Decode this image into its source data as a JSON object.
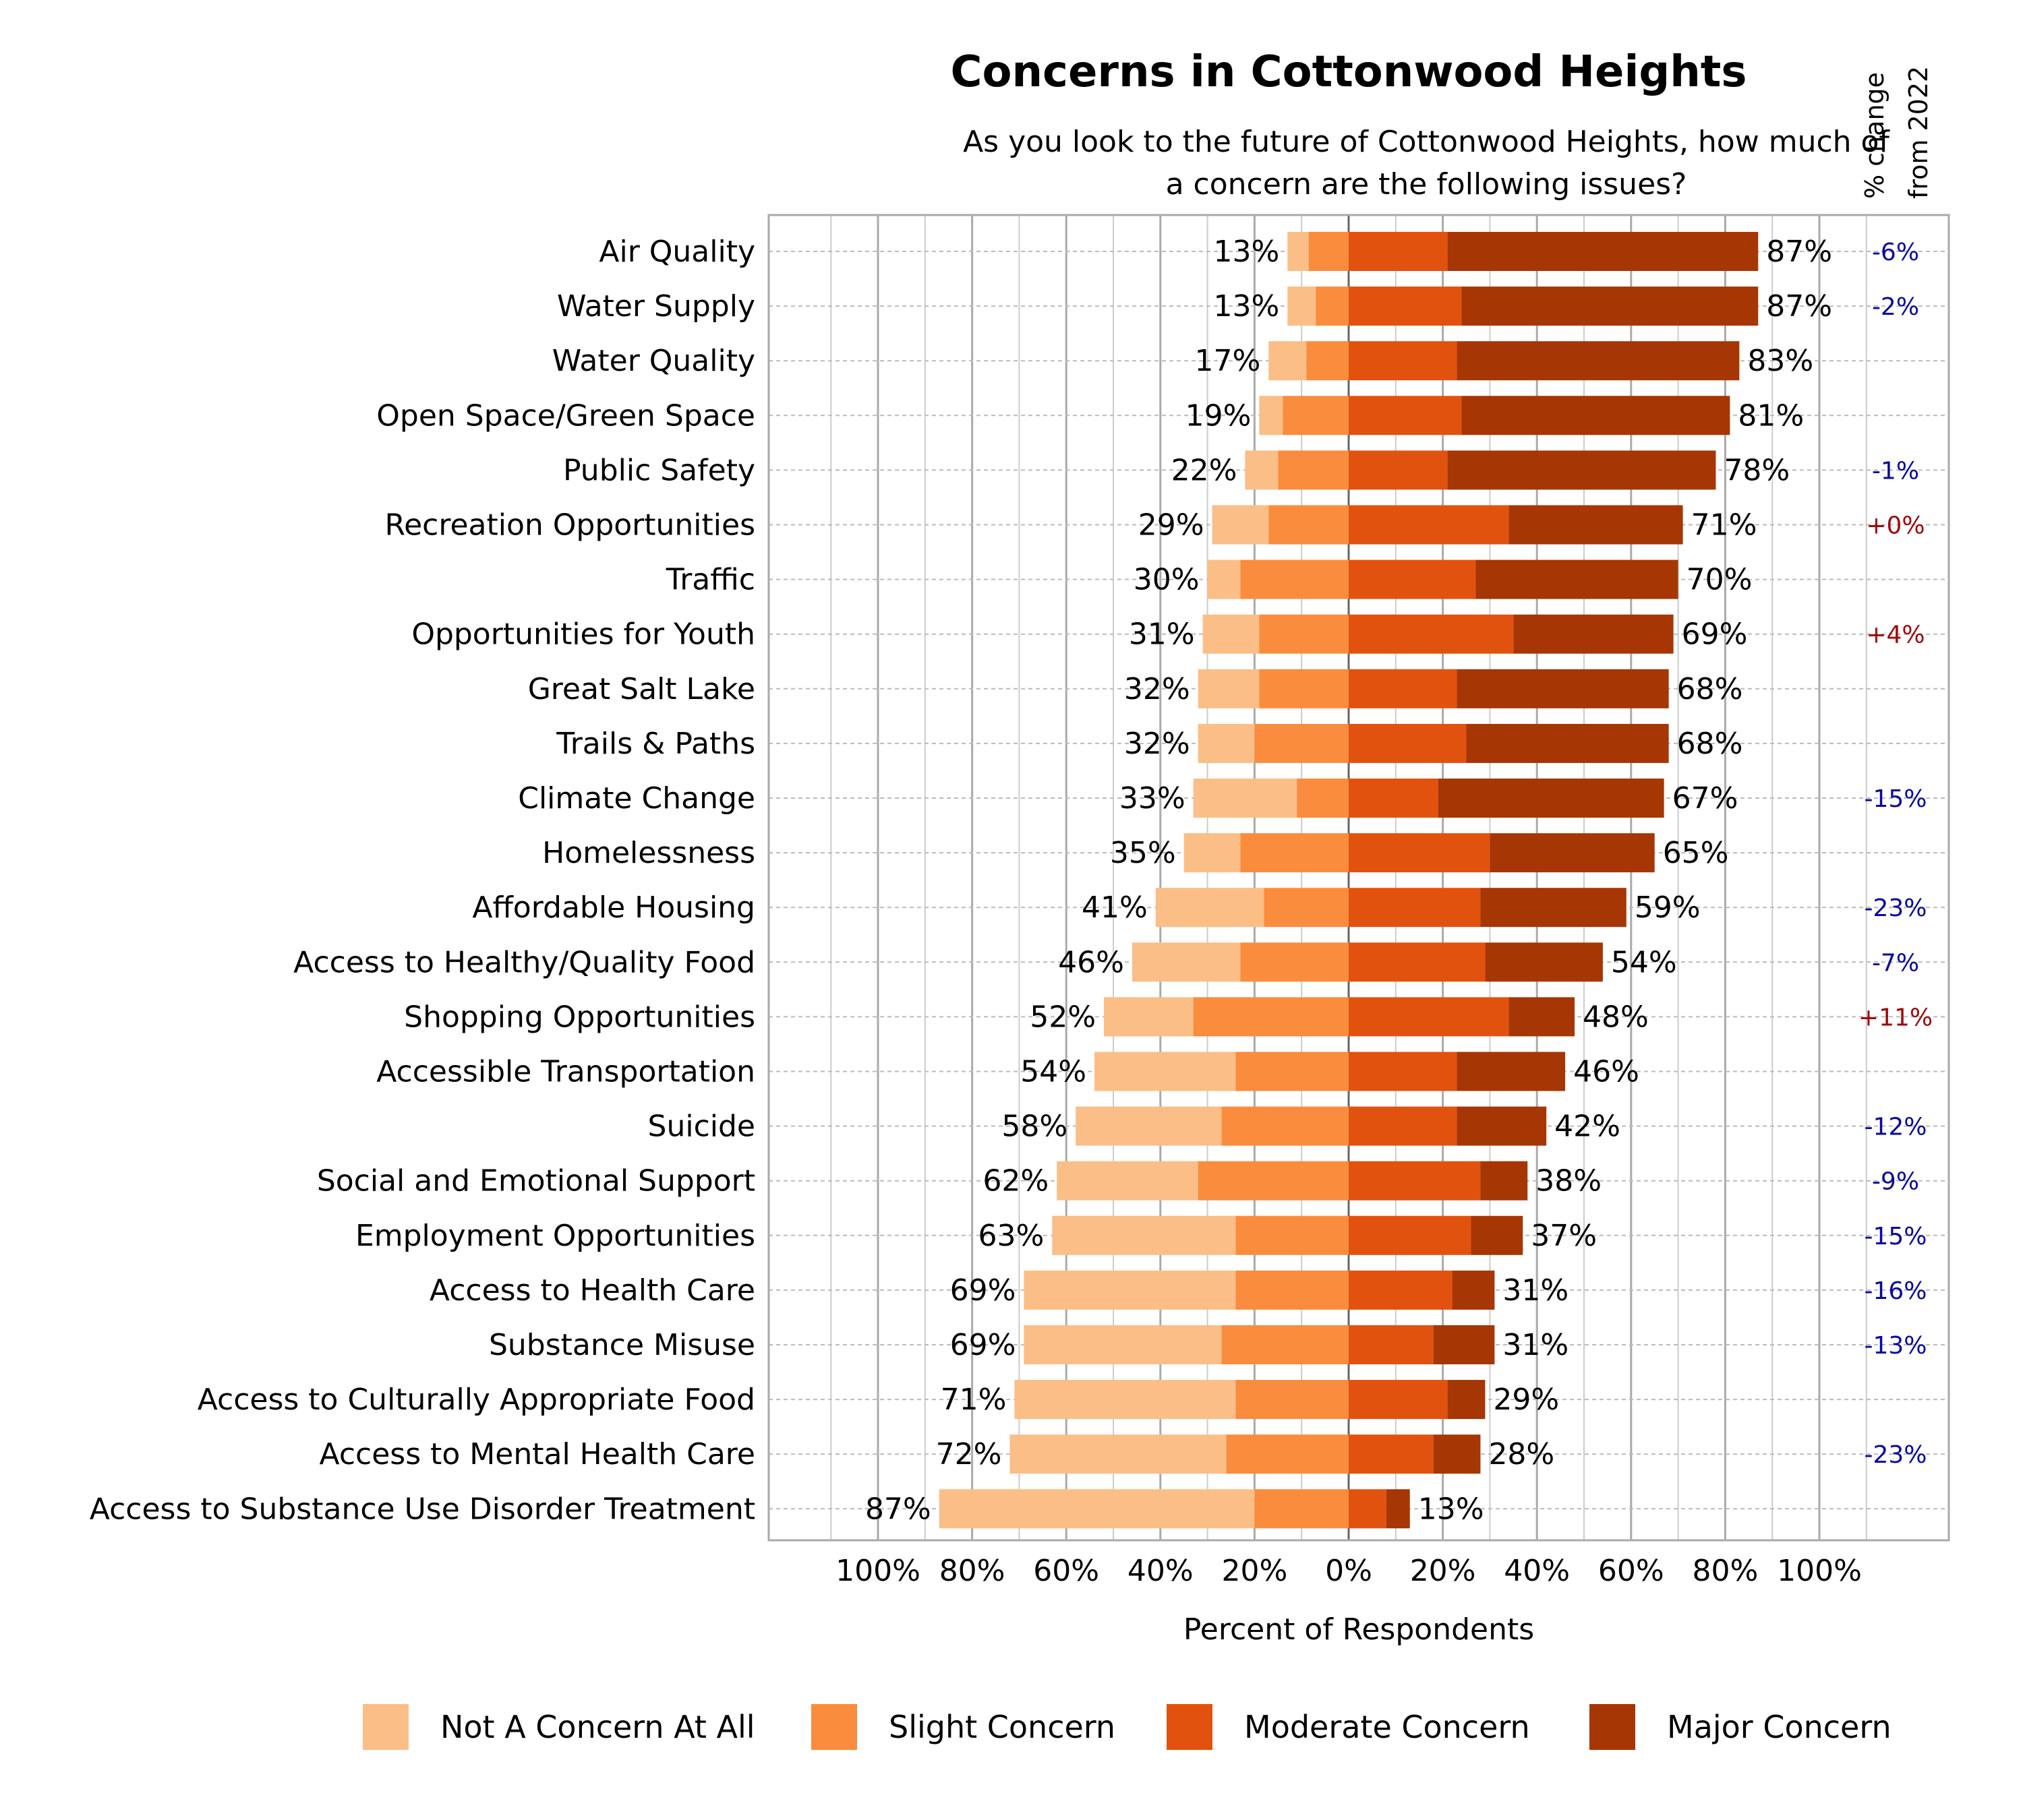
{
  "chart_data": {
    "type": "bar",
    "stacked": "diverging",
    "title": "Concerns in Cottonwood Heights",
    "subtitle": [
      "As you look to the future of Cottonwood Heights, how much of",
      "a concern are the following issues?"
    ],
    "xlabel": "Percent of Respondents",
    "change_header": [
      "% change",
      "from 2022"
    ],
    "xlim": [
      -100,
      100
    ],
    "x_ticks": [
      "100%",
      "80%",
      "60%",
      "40%",
      "20%",
      "0%",
      "20%",
      "40%",
      "60%",
      "80%",
      "100%"
    ],
    "grid": true,
    "legend_position": "bottom",
    "colors": {
      "not": "#FBBE87",
      "slight": "#FA8C3E",
      "moderate": "#E2520F",
      "major": "#A63603",
      "negative_change": "#0A0A9E",
      "positive_change": "#9E0A0A"
    },
    "series": [
      {
        "name": "Not A Concern At All",
        "key": "not"
      },
      {
        "name": "Slight Concern",
        "key": "slight"
      },
      {
        "name": "Moderate Concern",
        "key": "moderate"
      },
      {
        "name": "Major Concern",
        "key": "major"
      }
    ],
    "rows": [
      {
        "label": "Air Quality",
        "not": 4.5,
        "slight": 8.5,
        "moderate": 21,
        "major": 66,
        "left_label": "13%",
        "right_label": "87%",
        "change": "-6%"
      },
      {
        "label": "Water Supply",
        "not": 6,
        "slight": 7,
        "moderate": 24,
        "major": 63,
        "left_label": "13%",
        "right_label": "87%",
        "change": "-2%"
      },
      {
        "label": "Water Quality",
        "not": 8,
        "slight": 9,
        "moderate": 23,
        "major": 60,
        "left_label": "17%",
        "right_label": "83%",
        "change": ""
      },
      {
        "label": "Open Space/Green Space",
        "not": 5,
        "slight": 14,
        "moderate": 24,
        "major": 57,
        "left_label": "19%",
        "right_label": "81%",
        "change": ""
      },
      {
        "label": "Public Safety",
        "not": 7,
        "slight": 15,
        "moderate": 21,
        "major": 57,
        "left_label": "22%",
        "right_label": "78%",
        "change": "-1%"
      },
      {
        "label": "Recreation Opportunities",
        "not": 12,
        "slight": 17,
        "moderate": 34,
        "major": 37,
        "left_label": "29%",
        "right_label": "71%",
        "change": "+0%"
      },
      {
        "label": "Traffic",
        "not": 7,
        "slight": 23,
        "moderate": 27,
        "major": 43,
        "left_label": "30%",
        "right_label": "70%",
        "change": ""
      },
      {
        "label": "Opportunities for Youth",
        "not": 12,
        "slight": 19,
        "moderate": 35,
        "major": 34,
        "left_label": "31%",
        "right_label": "69%",
        "change": "+4%"
      },
      {
        "label": "Great Salt Lake",
        "not": 13,
        "slight": 19,
        "moderate": 23,
        "major": 45,
        "left_label": "32%",
        "right_label": "68%",
        "change": ""
      },
      {
        "label": "Trails & Paths",
        "not": 12,
        "slight": 20,
        "moderate": 25,
        "major": 43,
        "left_label": "32%",
        "right_label": "68%",
        "change": ""
      },
      {
        "label": "Climate Change",
        "not": 22,
        "slight": 11,
        "moderate": 19,
        "major": 48,
        "left_label": "33%",
        "right_label": "67%",
        "change": "-15%"
      },
      {
        "label": "Homelessness",
        "not": 12,
        "slight": 23,
        "moderate": 30,
        "major": 35,
        "left_label": "35%",
        "right_label": "65%",
        "change": ""
      },
      {
        "label": "Affordable Housing",
        "not": 23,
        "slight": 18,
        "moderate": 28,
        "major": 31,
        "left_label": "41%",
        "right_label": "59%",
        "change": "-23%"
      },
      {
        "label": "Access to Healthy/Quality Food",
        "not": 23,
        "slight": 23,
        "moderate": 29,
        "major": 25,
        "left_label": "46%",
        "right_label": "54%",
        "change": "-7%"
      },
      {
        "label": "Shopping Opportunities",
        "not": 19,
        "slight": 33,
        "moderate": 34,
        "major": 14,
        "left_label": "52%",
        "right_label": "48%",
        "change": "+11%"
      },
      {
        "label": "Accessible Transportation",
        "not": 30,
        "slight": 24,
        "moderate": 23,
        "major": 23,
        "left_label": "54%",
        "right_label": "46%",
        "change": ""
      },
      {
        "label": "Suicide",
        "not": 31,
        "slight": 27,
        "moderate": 23,
        "major": 19,
        "left_label": "58%",
        "right_label": "42%",
        "change": "-12%"
      },
      {
        "label": "Social and Emotional Support",
        "not": 30,
        "slight": 32,
        "moderate": 28,
        "major": 10,
        "left_label": "62%",
        "right_label": "38%",
        "change": "-9%"
      },
      {
        "label": "Employment Opportunities",
        "not": 39,
        "slight": 24,
        "moderate": 26,
        "major": 11,
        "left_label": "63%",
        "right_label": "37%",
        "change": "-15%"
      },
      {
        "label": "Access to Health Care",
        "not": 45,
        "slight": 24,
        "moderate": 22,
        "major": 9,
        "left_label": "69%",
        "right_label": "31%",
        "change": "-16%"
      },
      {
        "label": "Substance Misuse",
        "not": 42,
        "slight": 27,
        "moderate": 18,
        "major": 13,
        "left_label": "69%",
        "right_label": "31%",
        "change": "-13%"
      },
      {
        "label": "Access to Culturally Appropriate Food",
        "not": 47,
        "slight": 24,
        "moderate": 21,
        "major": 8,
        "left_label": "71%",
        "right_label": "29%",
        "change": ""
      },
      {
        "label": "Access to Mental Health Care",
        "not": 46,
        "slight": 26,
        "moderate": 18,
        "major": 10,
        "left_label": "72%",
        "right_label": "28%",
        "change": "-23%"
      },
      {
        "label": "Access to Substance Use Disorder Treatment",
        "not": 67,
        "slight": 20,
        "moderate": 8,
        "major": 5,
        "left_label": "87%",
        "right_label": "13%",
        "change": ""
      }
    ]
  }
}
